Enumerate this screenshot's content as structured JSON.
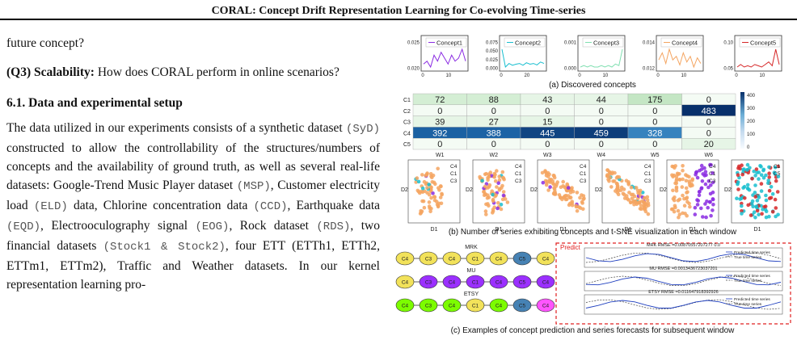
{
  "header": {
    "title": "CORAL: Concept Drift Representation Learning for Co-evolving Time-series"
  },
  "left": {
    "line_top": "future concept?",
    "q3_label": "(Q3) Scalability:",
    "q3_text": " How does CORAL perform in online scenarios?",
    "section_title": "6.1. Data and experimental setup",
    "body": [
      {
        "t": "The data utilized in our experiments consists of a synthetic dataset "
      },
      {
        "m": "(SyD)"
      },
      {
        "t": " constructed to allow the controllability of the structures/numbers of concepts and the availability of ground truth, as well as several real-life datasets: Google-Trend Music Player dataset "
      },
      {
        "m": "(MSP)"
      },
      {
        "t": ", Customer electricity load "
      },
      {
        "m": "(ELD)"
      },
      {
        "t": " data, Chlorine concentration data "
      },
      {
        "m": "(CCD)"
      },
      {
        "t": ", Earthquake data "
      },
      {
        "m": "(EQD)"
      },
      {
        "t": ", Electrooculography signal "
      },
      {
        "m": "(EOG)"
      },
      {
        "t": ", Rock dataset "
      },
      {
        "m": "(RDS)"
      },
      {
        "t": ", two financial datasets "
      },
      {
        "m": "(Stock1 & Stock2)"
      },
      {
        "t": ", four ETT (ETTh1, ETTh2, ETTm1, ETTm2), Traffic and Weather datasets. In our kernel representation learning pro-"
      }
    ]
  },
  "figure": {
    "captions": {
      "a": "(a) Discovered concepts",
      "b": "(b) Number of series exhibiting concepts and t-SNE visualization in each window",
      "c": "(c) Examples of concept prediction and series forecasts for subsequent window"
    },
    "concepts": [
      {
        "name": "Concept1",
        "color": "#8a2be2",
        "yticks": [
          "0.025",
          "0.020"
        ],
        "xticks": [
          "0",
          "10"
        ],
        "values": [
          0.021,
          0.022,
          0.02,
          0.024,
          0.022,
          0.025,
          0.023,
          0.021,
          0.024,
          0.022,
          0.023,
          0.026,
          0.022
        ]
      },
      {
        "name": "Concept2",
        "color": "#17becf",
        "yticks": [
          "0.075",
          "0.050",
          "0.025",
          "0.000"
        ],
        "xticks": [
          "0",
          "20"
        ],
        "values": [
          0.07,
          0.02,
          0.03,
          0.025,
          0.028,
          0.03,
          0.025,
          0.032,
          0.028,
          0.03,
          0.026,
          0.034,
          0.03
        ]
      },
      {
        "name": "Concept3",
        "color": "#7fdfb0",
        "yticks": [
          "0.001",
          "0.000"
        ],
        "xticks": [
          "0",
          "10"
        ],
        "values": [
          0.0,
          0.0001,
          0.0,
          0.0001,
          0.0,
          0.0,
          0.0001,
          0.0,
          0.0001,
          0.0,
          0.0002,
          0.0001,
          0.0012
        ]
      },
      {
        "name": "Concept4",
        "color": "#f4a460",
        "yticks": [
          "0.014",
          "0.012"
        ],
        "xticks": [
          "0",
          "10"
        ],
        "values": [
          0.0125,
          0.0135,
          0.012,
          0.014,
          0.0125,
          0.013,
          0.0118,
          0.0135,
          0.0122,
          0.013,
          0.0115,
          0.0128,
          0.012
        ]
      },
      {
        "name": "Concept5",
        "color": "#d62728",
        "yticks": [
          "0.10",
          "0.05"
        ],
        "xticks": [
          "0",
          "10"
        ],
        "values": [
          0.05,
          0.06,
          0.05,
          0.055,
          0.05,
          0.06,
          0.055,
          0.05,
          0.06,
          0.07,
          0.055,
          0.12,
          0.06
        ]
      }
    ],
    "heatmap": {
      "rows": [
        "C1",
        "C2",
        "C3",
        "C4",
        "C5"
      ],
      "cols": [
        "W1",
        "W2",
        "W3",
        "W4",
        "W5",
        "W6"
      ],
      "values": [
        [
          72,
          88,
          43,
          44,
          175,
          0
        ],
        [
          0,
          0,
          0,
          0,
          0,
          483
        ],
        [
          39,
          27,
          15,
          0,
          0,
          0
        ],
        [
          392,
          388,
          445,
          459,
          328,
          0
        ],
        [
          0,
          0,
          0,
          0,
          0,
          20
        ]
      ],
      "colorbar_ticks": [
        "400",
        "300",
        "200",
        "100",
        "0"
      ]
    },
    "tsne_legend": [
      "C4",
      "C1",
      "C3"
    ],
    "tsne_legend_last": [
      "C1",
      "C5"
    ],
    "tsne_axes": {
      "x": "D1",
      "y": "D2"
    },
    "forecast": {
      "predict_label": "Predict",
      "rows": [
        {
          "label": "MRK",
          "title": "MRK RMSE =0.00870557207277 0.0",
          "colors": [
            "#f2e25a",
            "#f2e25a",
            "#f2e25a",
            "#f2e25a",
            "#f2e25a",
            "#4682b4",
            "#f2e25a"
          ]
        },
        {
          "label": "MU",
          "title": "MU RMSE =0.0013436723037201",
          "colors": [
            "#f2e25a",
            "#9b30ff",
            "#9b30ff",
            "#9b30ff",
            "#9b30ff",
            "#9b30ff",
            "#9b30ff"
          ]
        },
        {
          "label": "ETSY",
          "title": "ETSY RMSE =0.011647918392926",
          "colors": [
            "#7cfc00",
            "#7cfc00",
            "#7cfc00",
            "#f2e25a",
            "#7cfc00",
            "#4682b4",
            "#ff55ff"
          ]
        }
      ],
      "node_labels": [
        "C4",
        "C3",
        "C4",
        "C1",
        "C4",
        "C5",
        "C4"
      ],
      "legend": [
        "Predicted time series",
        "True time series"
      ]
    }
  }
}
